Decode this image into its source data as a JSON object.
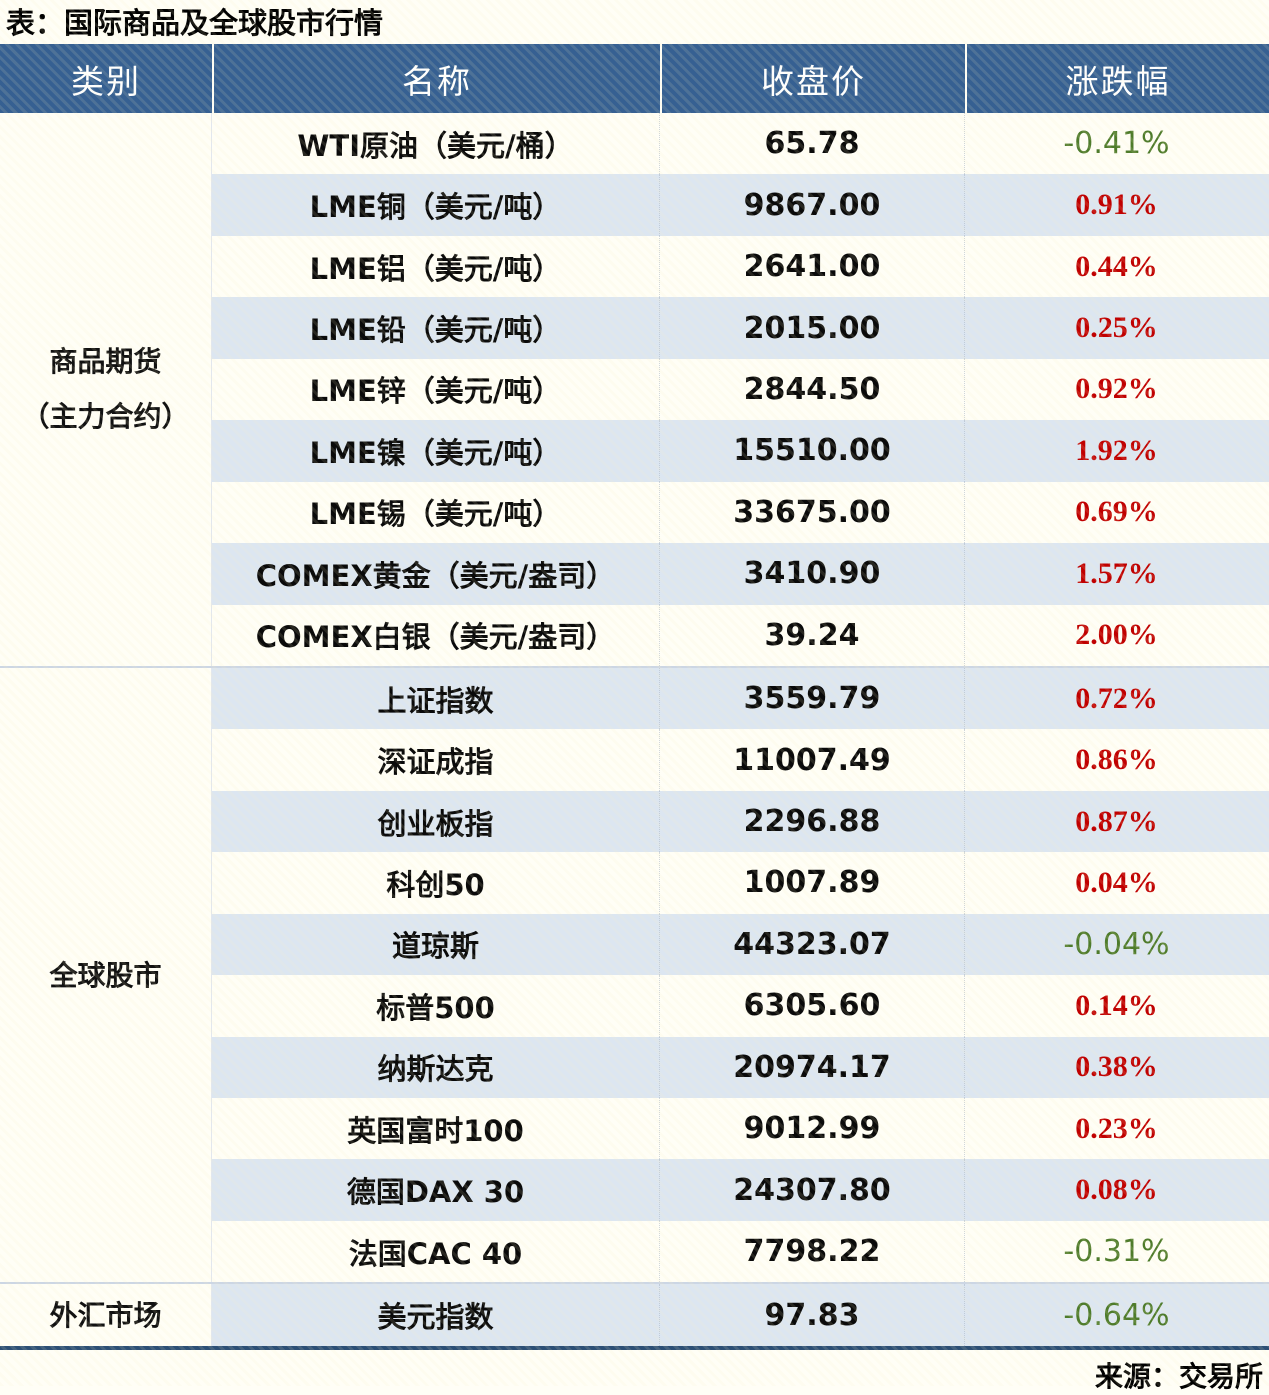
{
  "title": "表：国际商品及全球股市行情",
  "columns": {
    "category": "类别",
    "name": "名称",
    "close": "收盘价",
    "change": "涨跌幅"
  },
  "colors": {
    "header_bg": "#366092",
    "row_stripe": "#dce6f1",
    "up_red": "#c00000",
    "down_green": "#4e7b2b",
    "bottom_border": "#2c4f75"
  },
  "groups": [
    {
      "category": "商品期货\n（主力合约）",
      "rows": [
        {
          "name": "WTI原油（美元/桶）",
          "close": "65.78",
          "change": "-0.41%",
          "direction": "down"
        },
        {
          "name": "LME铜（美元/吨）",
          "close": "9867.00",
          "change": "0.91%",
          "direction": "up"
        },
        {
          "name": "LME铝（美元/吨）",
          "close": "2641.00",
          "change": "0.44%",
          "direction": "up"
        },
        {
          "name": "LME铅（美元/吨）",
          "close": "2015.00",
          "change": "0.25%",
          "direction": "up"
        },
        {
          "name": "LME锌（美元/吨）",
          "close": "2844.50",
          "change": "0.92%",
          "direction": "up"
        },
        {
          "name": "LME镍（美元/吨）",
          "close": "15510.00",
          "change": "1.92%",
          "direction": "up"
        },
        {
          "name": "LME锡（美元/吨）",
          "close": "33675.00",
          "change": "0.69%",
          "direction": "up"
        },
        {
          "name": "COMEX黄金（美元/盎司）",
          "close": "3410.90",
          "change": "1.57%",
          "direction": "up"
        },
        {
          "name": "COMEX白银（美元/盎司）",
          "close": "39.24",
          "change": "2.00%",
          "direction": "up"
        }
      ]
    },
    {
      "category": "全球股市",
      "rows": [
        {
          "name": "上证指数",
          "close": "3559.79",
          "change": "0.72%",
          "direction": "up"
        },
        {
          "name": "深证成指",
          "close": "11007.49",
          "change": "0.86%",
          "direction": "up"
        },
        {
          "name": "创业板指",
          "close": "2296.88",
          "change": "0.87%",
          "direction": "up"
        },
        {
          "name": "科创50",
          "close": "1007.89",
          "change": "0.04%",
          "direction": "up"
        },
        {
          "name": "道琼斯",
          "close": "44323.07",
          "change": "-0.04%",
          "direction": "down"
        },
        {
          "name": "标普500",
          "close": "6305.60",
          "change": "0.14%",
          "direction": "up"
        },
        {
          "name": "纳斯达克",
          "close": "20974.17",
          "change": "0.38%",
          "direction": "up"
        },
        {
          "name": "英国富时100",
          "close": "9012.99",
          "change": "0.23%",
          "direction": "up"
        },
        {
          "name": "德国DAX 30",
          "close": "24307.80",
          "change": "0.08%",
          "direction": "up"
        },
        {
          "name": "法国CAC 40",
          "close": "7798.22",
          "change": "-0.31%",
          "direction": "down"
        }
      ]
    },
    {
      "category": "外汇市场",
      "rows": [
        {
          "name": "美元指数",
          "close": "97.83",
          "change": "-0.64%",
          "direction": "down"
        }
      ]
    }
  ],
  "footer": {
    "source": "来源：交易所"
  }
}
